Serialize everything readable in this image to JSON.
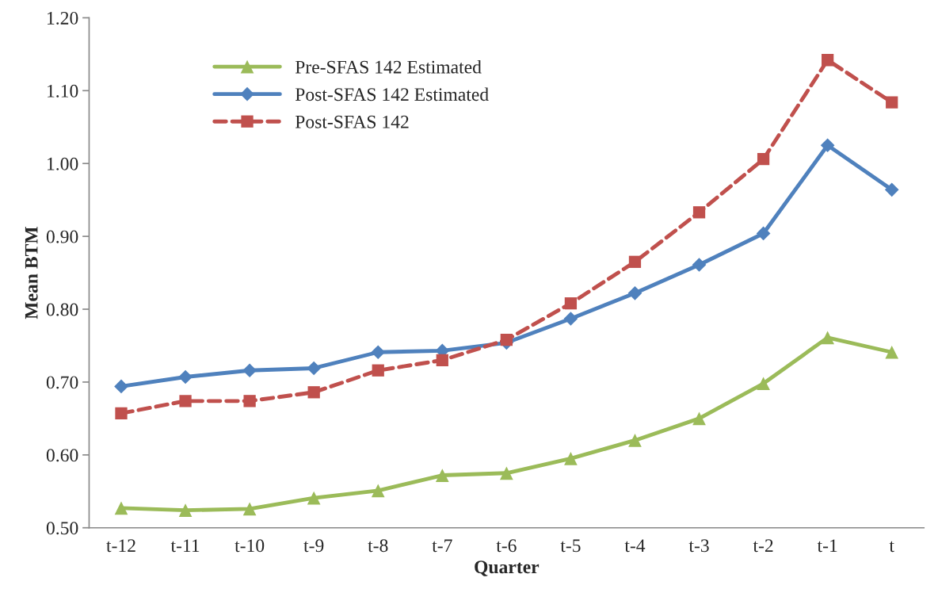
{
  "chart_data": {
    "type": "line",
    "xlabel": "Quarter",
    "ylabel": "Mean BTM",
    "categories": [
      "t-12",
      "t-11",
      "t-10",
      "t-9",
      "t-8",
      "t-7",
      "t-6",
      "t-5",
      "t-4",
      "t-3",
      "t-2",
      "t-1",
      "t"
    ],
    "series": [
      {
        "name": "Pre-SFAS 142 Estimated",
        "color": "#9bbb59",
        "marker": "triangle",
        "line_style": "solid",
        "values": [
          0.527,
          0.524,
          0.526,
          0.541,
          0.551,
          0.572,
          0.575,
          0.595,
          0.62,
          0.65,
          0.698,
          0.761,
          0.741
        ]
      },
      {
        "name": "Post-SFAS 142 Estimated",
        "color": "#4f81bd",
        "marker": "diamond",
        "line_style": "solid",
        "values": [
          0.694,
          0.707,
          0.716,
          0.719,
          0.741,
          0.743,
          0.754,
          0.787,
          0.822,
          0.861,
          0.904,
          1.025,
          0.964
        ]
      },
      {
        "name": "Post-SFAS 142",
        "color": "#c0504d",
        "marker": "square",
        "line_style": "dashed",
        "values": [
          0.657,
          0.674,
          0.674,
          0.686,
          0.716,
          0.73,
          0.758,
          0.808,
          0.865,
          0.933,
          1.006,
          1.142,
          1.084
        ]
      }
    ],
    "ylim": [
      0.5,
      1.2
    ],
    "yticks": [
      {
        "value": 0.5,
        "label": "0.50"
      },
      {
        "value": 0.6,
        "label": "0.60"
      },
      {
        "value": 0.7,
        "label": "0.70"
      },
      {
        "value": 0.8,
        "label": "0.80"
      },
      {
        "value": 0.9,
        "label": "0.90"
      },
      {
        "value": 1.0,
        "label": "1.00"
      },
      {
        "value": 1.1,
        "label": "1.10"
      },
      {
        "value": 1.2,
        "label": "1.20"
      }
    ],
    "grid": false,
    "legend": "top left"
  }
}
